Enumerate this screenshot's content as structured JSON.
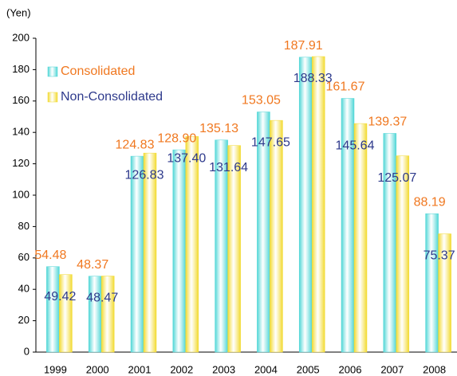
{
  "chart_data": {
    "type": "bar",
    "y_label": "(Yen)",
    "categories": [
      "1999",
      "2000",
      "2001",
      "2002",
      "2003",
      "2004",
      "2005",
      "2006",
      "2007",
      "2008"
    ],
    "series": [
      {
        "name": "Consolidated",
        "color": "#4fd6d6",
        "label_color": "#f07820",
        "values": [
          54.48,
          48.37,
          124.83,
          128.9,
          135.13,
          153.05,
          187.91,
          161.67,
          139.37,
          88.19
        ],
        "value_labels": [
          "54.48",
          "48.37",
          "124.83",
          "128.90",
          "135.13",
          "153.05",
          "187.91",
          "161.67",
          "139.37",
          "88.19"
        ]
      },
      {
        "name": "Non-Consolidated",
        "color": "#f2da30",
        "label_color": "#2e3a8c",
        "values": [
          49.42,
          48.47,
          126.83,
          137.4,
          131.64,
          147.65,
          188.33,
          145.64,
          125.07,
          75.37
        ],
        "value_labels": [
          "49.42",
          "48.47",
          "126.83",
          "137.40",
          "131.64",
          "147.65",
          "188.33",
          "145.64",
          "125.07",
          "75.37"
        ]
      }
    ],
    "ylim": [
      0,
      200
    ],
    "yticks": [
      0,
      20,
      40,
      60,
      80,
      100,
      120,
      140,
      160,
      180,
      200
    ],
    "grid": false,
    "legend": "upper left"
  }
}
